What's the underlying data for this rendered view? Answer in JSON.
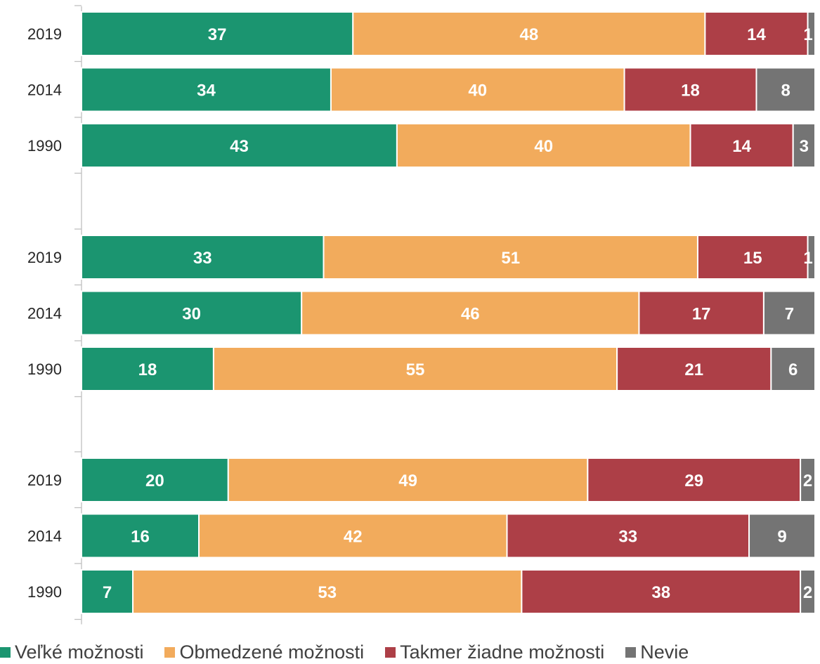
{
  "chart_data": {
    "type": "bar",
    "orientation": "horizontal",
    "stacked": true,
    "percent": true,
    "xlim": [
      0,
      100
    ],
    "grid": false,
    "legend_position": "bottom",
    "groups": [
      {
        "categories": [
          "2019",
          "2014",
          "1990"
        ]
      },
      {
        "categories": [
          "2019",
          "2014",
          "1990"
        ]
      },
      {
        "categories": [
          "2019",
          "2014",
          "1990"
        ]
      }
    ],
    "series": [
      {
        "name": "Veľké možnosti",
        "color": "#1B9570",
        "values": [
          [
            37,
            34,
            43
          ],
          [
            33,
            30,
            18
          ],
          [
            20,
            16,
            7
          ]
        ]
      },
      {
        "name": "Obmedzené možnosti",
        "color": "#F2AB5C",
        "values": [
          [
            48,
            40,
            40
          ],
          [
            51,
            46,
            55
          ],
          [
            49,
            42,
            53
          ]
        ]
      },
      {
        "name": "Takmer žiadne možnosti",
        "color": "#AD3F47",
        "values": [
          [
            14,
            18,
            14
          ],
          [
            15,
            17,
            21
          ],
          [
            29,
            33,
            38
          ]
        ]
      },
      {
        "name": "Nevie",
        "color": "#747474",
        "values": [
          [
            1,
            8,
            3
          ],
          [
            1,
            7,
            6
          ],
          [
            2,
            9,
            2
          ]
        ]
      }
    ]
  }
}
